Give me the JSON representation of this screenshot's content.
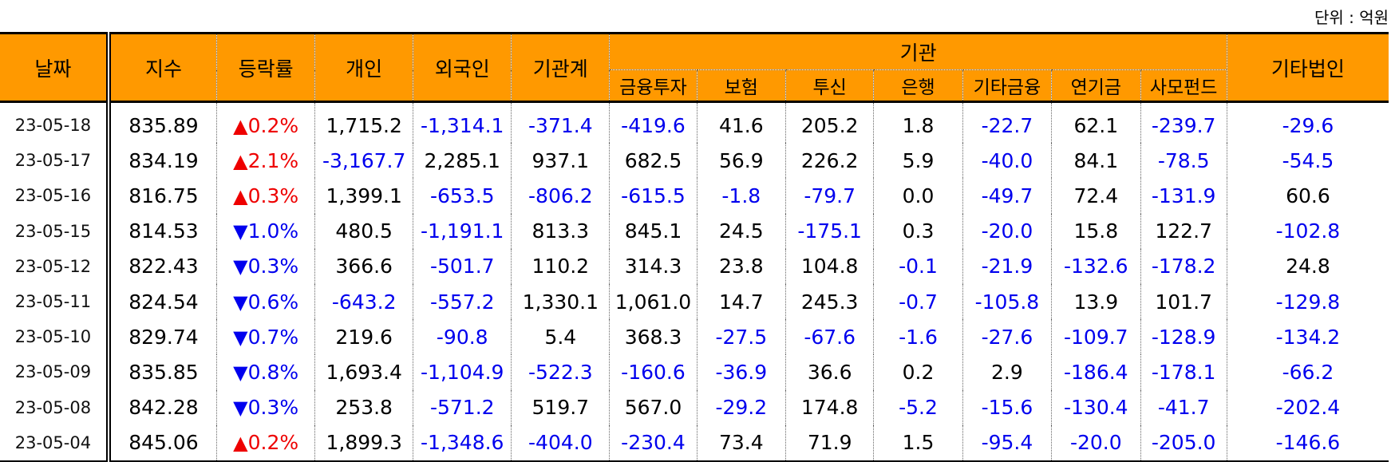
{
  "unit_label": "단위 : 억원",
  "headers": {
    "date": "날짜",
    "index": "지수",
    "change": "등락률",
    "individual": "개인",
    "foreign": "외국인",
    "inst_total": "기관계",
    "institution": "기관",
    "financial_invest": "금융투자",
    "insurance": "보험",
    "trust": "투신",
    "bank": "은행",
    "other_financial": "기타금융",
    "pension": "연기금",
    "private_fund": "사모펀드",
    "other_corp": "기타법인"
  },
  "colors": {
    "header_bg": "#ff9900",
    "negative": "#0000ee",
    "up": "#ee0000",
    "down": "#0000ee"
  },
  "rows": [
    {
      "date": "23-05-18",
      "index": "835.89",
      "dir": "up",
      "change": "0.2%",
      "individual": "1,715.2",
      "foreign": "-1,314.1",
      "inst_total": "-371.4",
      "financial_invest": "-419.6",
      "insurance": "41.6",
      "trust": "205.2",
      "bank": "1.8",
      "other_financial": "-22.7",
      "pension": "62.1",
      "private_fund": "-239.7",
      "other_corp": "-29.6"
    },
    {
      "date": "23-05-17",
      "index": "834.19",
      "dir": "up",
      "change": "2.1%",
      "individual": "-3,167.7",
      "foreign": "2,285.1",
      "inst_total": "937.1",
      "financial_invest": "682.5",
      "insurance": "56.9",
      "trust": "226.2",
      "bank": "5.9",
      "other_financial": "-40.0",
      "pension": "84.1",
      "private_fund": "-78.5",
      "other_corp": "-54.5"
    },
    {
      "date": "23-05-16",
      "index": "816.75",
      "dir": "up",
      "change": "0.3%",
      "individual": "1,399.1",
      "foreign": "-653.5",
      "inst_total": "-806.2",
      "financial_invest": "-615.5",
      "insurance": "-1.8",
      "trust": "-79.7",
      "bank": "0.0",
      "other_financial": "-49.7",
      "pension": "72.4",
      "private_fund": "-131.9",
      "other_corp": "60.6"
    },
    {
      "date": "23-05-15",
      "index": "814.53",
      "dir": "down",
      "change": "1.0%",
      "individual": "480.5",
      "foreign": "-1,191.1",
      "inst_total": "813.3",
      "financial_invest": "845.1",
      "insurance": "24.5",
      "trust": "-175.1",
      "bank": "0.3",
      "other_financial": "-20.0",
      "pension": "15.8",
      "private_fund": "122.7",
      "other_corp": "-102.8"
    },
    {
      "date": "23-05-12",
      "index": "822.43",
      "dir": "down",
      "change": "0.3%",
      "individual": "366.6",
      "foreign": "-501.7",
      "inst_total": "110.2",
      "financial_invest": "314.3",
      "insurance": "23.8",
      "trust": "104.8",
      "bank": "-0.1",
      "other_financial": "-21.9",
      "pension": "-132.6",
      "private_fund": "-178.2",
      "other_corp": "24.8"
    },
    {
      "date": "23-05-11",
      "index": "824.54",
      "dir": "down",
      "change": "0.6%",
      "individual": "-643.2",
      "foreign": "-557.2",
      "inst_total": "1,330.1",
      "financial_invest": "1,061.0",
      "insurance": "14.7",
      "trust": "245.3",
      "bank": "-0.7",
      "other_financial": "-105.8",
      "pension": "13.9",
      "private_fund": "101.7",
      "other_corp": "-129.8"
    },
    {
      "date": "23-05-10",
      "index": "829.74",
      "dir": "down",
      "change": "0.7%",
      "individual": "219.6",
      "foreign": "-90.8",
      "inst_total": "5.4",
      "financial_invest": "368.3",
      "insurance": "-27.5",
      "trust": "-67.6",
      "bank": "-1.6",
      "other_financial": "-27.6",
      "pension": "-109.7",
      "private_fund": "-128.9",
      "other_corp": "-134.2"
    },
    {
      "date": "23-05-09",
      "index": "835.85",
      "dir": "down",
      "change": "0.8%",
      "individual": "1,693.4",
      "foreign": "-1,104.9",
      "inst_total": "-522.3",
      "financial_invest": "-160.6",
      "insurance": "-36.9",
      "trust": "36.6",
      "bank": "0.2",
      "other_financial": "2.9",
      "pension": "-186.4",
      "private_fund": "-178.1",
      "other_corp": "-66.2"
    },
    {
      "date": "23-05-08",
      "index": "842.28",
      "dir": "down",
      "change": "0.3%",
      "individual": "253.8",
      "foreign": "-571.2",
      "inst_total": "519.7",
      "financial_invest": "567.0",
      "insurance": "-29.2",
      "trust": "174.8",
      "bank": "-5.2",
      "other_financial": "-15.6",
      "pension": "-130.4",
      "private_fund": "-41.7",
      "other_corp": "-202.4"
    },
    {
      "date": "23-05-04",
      "index": "845.06",
      "dir": "up",
      "change": "0.2%",
      "individual": "1,899.3",
      "foreign": "-1,348.6",
      "inst_total": "-404.0",
      "financial_invest": "-230.4",
      "insurance": "73.4",
      "trust": "71.9",
      "bank": "1.5",
      "other_financial": "-95.4",
      "pension": "-20.0",
      "private_fund": "-205.0",
      "other_corp": "-146.6"
    }
  ]
}
